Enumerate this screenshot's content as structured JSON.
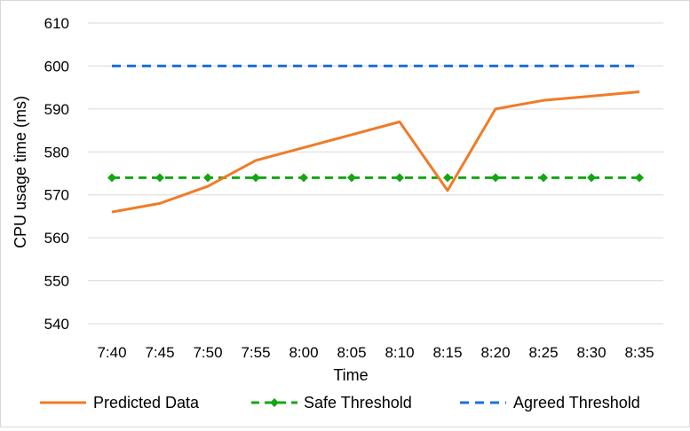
{
  "chart_data": {
    "type": "line",
    "title": "",
    "xlabel": "Time",
    "ylabel": "CPU usage time (ms)",
    "categories": [
      "7:40",
      "7:45",
      "7:50",
      "7:55",
      "8:00",
      "8:05",
      "8:10",
      "8:15",
      "8:20",
      "8:25",
      "8:30",
      "8:35"
    ],
    "ylim": [
      540,
      610
    ],
    "yticks": [
      540,
      550,
      560,
      570,
      580,
      590,
      600,
      610
    ],
    "grid": true,
    "legend_position": "bottom",
    "series": [
      {
        "name": "Predicted Data",
        "values": [
          566,
          568,
          572,
          578,
          581,
          584,
          587,
          571,
          590,
          592,
          593,
          594
        ],
        "color": "#f07b27",
        "style": "solid",
        "marker": "none"
      },
      {
        "name": "Safe Threshold",
        "values": [
          574,
          574,
          574,
          574,
          574,
          574,
          574,
          574,
          574,
          574,
          574,
          574
        ],
        "color": "#14a614",
        "style": "dashed",
        "marker": "diamond"
      },
      {
        "name": "Agreed Threshold",
        "values": [
          600,
          600,
          600,
          600,
          600,
          600,
          600,
          600,
          600,
          600,
          600,
          600
        ],
        "color": "#1a6fe0",
        "style": "dashed",
        "marker": "none"
      }
    ]
  }
}
